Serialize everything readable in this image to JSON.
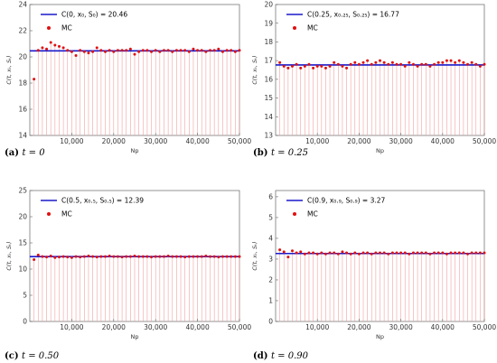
{
  "figure": {
    "panels": [
      {
        "caption": {
          "tag": "(a)",
          "math": "t = 0"
        },
        "legend": {
          "line_label": "C(0, x₀, S₀) = 20.46",
          "dot_label": "MC"
        },
        "chart_data": {
          "type": "scatter",
          "xlabel": "Np",
          "ylabel": "C(t, xₜ, Sₜ)",
          "xlim": [
            0,
            50000
          ],
          "ylim": [
            14,
            24
          ],
          "x_ticks": [
            10000,
            20000,
            30000,
            40000,
            50000
          ],
          "x_tick_labels": [
            "10,000",
            "20,000",
            "30,000",
            "40,000",
            "50,000"
          ],
          "y_ticks": [
            14,
            16,
            18,
            20,
            22,
            24
          ],
          "reference_value": 20.46,
          "series": [
            {
              "name": "C(0, x₀, S₀) = 20.46",
              "kind": "line"
            },
            {
              "name": "MC",
              "kind": "points",
              "x": [
                1000,
                2000,
                3000,
                4000,
                5000,
                6000,
                7000,
                8000,
                9000,
                10000,
                11000,
                12000,
                13000,
                14000,
                15000,
                16000,
                17000,
                18000,
                19000,
                20000,
                21000,
                22000,
                23000,
                24000,
                25000,
                26000,
                27000,
                28000,
                29000,
                30000,
                31000,
                32000,
                33000,
                34000,
                35000,
                36000,
                37000,
                38000,
                39000,
                40000,
                41000,
                42000,
                43000,
                44000,
                45000,
                46000,
                47000,
                48000,
                49000,
                50000
              ],
              "y": [
                18.3,
                20.5,
                20.7,
                20.6,
                21.1,
                20.9,
                20.8,
                20.7,
                20.5,
                20.4,
                20.1,
                20.5,
                20.4,
                20.3,
                20.4,
                20.7,
                20.5,
                20.4,
                20.5,
                20.4,
                20.5,
                20.5,
                20.5,
                20.6,
                20.2,
                20.4,
                20.5,
                20.5,
                20.4,
                20.5,
                20.4,
                20.5,
                20.5,
                20.4,
                20.5,
                20.5,
                20.5,
                20.4,
                20.6,
                20.5,
                20.5,
                20.4,
                20.5,
                20.5,
                20.6,
                20.4,
                20.5,
                20.5,
                20.4,
                20.5
              ]
            }
          ],
          "grid": false,
          "legend_position": "top-left"
        }
      },
      {
        "caption": {
          "tag": "(b)",
          "math": "t = 0.25"
        },
        "legend": {
          "line_label": "C(0.25, x₀.₂₅, S₀.₂₅) = 16.77",
          "dot_label": "MC"
        },
        "chart_data": {
          "type": "scatter",
          "xlabel": "Np",
          "ylabel": "C(t, xₜ, Sₜ)",
          "xlim": [
            0,
            50000
          ],
          "ylim": [
            13,
            20
          ],
          "x_ticks": [
            10000,
            20000,
            30000,
            40000,
            50000
          ],
          "x_tick_labels": [
            "10,000",
            "20,000",
            "30,000",
            "40,000",
            "50,000"
          ],
          "y_ticks": [
            13,
            14,
            15,
            16,
            17,
            18,
            19,
            20
          ],
          "reference_value": 16.77,
          "series": [
            {
              "name": "C(0.25, x₀.₂₅, S₀.₂₅) = 16.77",
              "kind": "line"
            },
            {
              "name": "MC",
              "kind": "points",
              "x": [
                1000,
                2000,
                3000,
                4000,
                5000,
                6000,
                7000,
                8000,
                9000,
                10000,
                11000,
                12000,
                13000,
                14000,
                15000,
                16000,
                17000,
                18000,
                19000,
                20000,
                21000,
                22000,
                23000,
                24000,
                25000,
                26000,
                27000,
                28000,
                29000,
                30000,
                31000,
                32000,
                33000,
                34000,
                35000,
                36000,
                37000,
                38000,
                39000,
                40000,
                41000,
                42000,
                43000,
                44000,
                45000,
                46000,
                47000,
                48000,
                49000,
                50000
              ],
              "y": [
                16.9,
                16.7,
                16.6,
                16.7,
                16.8,
                16.6,
                16.7,
                16.8,
                16.6,
                16.7,
                16.7,
                16.6,
                16.7,
                16.9,
                16.8,
                16.7,
                16.6,
                16.8,
                16.9,
                16.8,
                16.9,
                17.0,
                16.8,
                16.9,
                17.0,
                16.9,
                16.8,
                16.9,
                16.8,
                16.8,
                16.7,
                16.9,
                16.8,
                16.7,
                16.8,
                16.8,
                16.7,
                16.8,
                16.9,
                16.9,
                17.0,
                17.0,
                16.9,
                17.0,
                16.9,
                16.8,
                16.9,
                16.8,
                16.7,
                16.8
              ]
            }
          ],
          "grid": false,
          "legend_position": "top-left"
        }
      },
      {
        "caption": {
          "tag": "(c)",
          "math": "t = 0.50"
        },
        "legend": {
          "line_label": "C(0.5, x₀.₅, S₀.₅) = 12.39",
          "dot_label": "MC"
        },
        "chart_data": {
          "type": "scatter",
          "xlabel": "Np",
          "ylabel": "C(t, xₜ, Sₜ)",
          "xlim": [
            0,
            50000
          ],
          "ylim": [
            0,
            25
          ],
          "x_ticks": [
            10000,
            20000,
            30000,
            40000,
            50000
          ],
          "x_tick_labels": [
            "10,000",
            "20,000",
            "30,000",
            "40,000",
            "50,000"
          ],
          "y_ticks": [
            0,
            5,
            10,
            15,
            20,
            25
          ],
          "reference_value": 12.39,
          "series": [
            {
              "name": "C(0.5, x₀.₅, S₀.₅) = 12.39",
              "kind": "line"
            },
            {
              "name": "MC",
              "kind": "points",
              "x": [
                1000,
                2000,
                3000,
                4000,
                5000,
                6000,
                7000,
                8000,
                9000,
                10000,
                11000,
                12000,
                13000,
                14000,
                15000,
                16000,
                17000,
                18000,
                19000,
                20000,
                21000,
                22000,
                23000,
                24000,
                25000,
                26000,
                27000,
                28000,
                29000,
                30000,
                31000,
                32000,
                33000,
                34000,
                35000,
                36000,
                37000,
                38000,
                39000,
                40000,
                41000,
                42000,
                43000,
                44000,
                45000,
                46000,
                47000,
                48000,
                49000,
                50000
              ],
              "y": [
                11.8,
                12.7,
                12.4,
                12.3,
                12.5,
                12.2,
                12.3,
                12.4,
                12.3,
                12.2,
                12.4,
                12.3,
                12.4,
                12.5,
                12.4,
                12.3,
                12.4,
                12.4,
                12.5,
                12.4,
                12.4,
                12.3,
                12.4,
                12.4,
                12.5,
                12.4,
                12.4,
                12.4,
                12.3,
                12.4,
                12.4,
                12.4,
                12.5,
                12.4,
                12.4,
                12.4,
                12.3,
                12.4,
                12.4,
                12.4,
                12.4,
                12.5,
                12.4,
                12.4,
                12.3,
                12.4,
                12.4,
                12.4,
                12.4,
                12.4
              ]
            }
          ],
          "grid": false,
          "legend_position": "top-left"
        }
      },
      {
        "caption": {
          "tag": "(d)",
          "math": "t = 0.90"
        },
        "legend": {
          "line_label": "C(0.9, x₀.₉, S₀.₉) = 3.27",
          "dot_label": "MC"
        },
        "chart_data": {
          "type": "scatter",
          "xlabel": "Np",
          "ylabel": "C(t, xₜ, Sₜ)",
          "xlim": [
            0,
            50000
          ],
          "ylim": [
            0,
            6.3
          ],
          "x_ticks": [
            10000,
            20000,
            30000,
            40000,
            50000
          ],
          "x_tick_labels": [
            "10,000",
            "20,000",
            "30,000",
            "40,000",
            "50,000"
          ],
          "y_ticks": [
            0,
            1,
            2,
            3,
            4,
            5,
            6
          ],
          "reference_value": 3.27,
          "series": [
            {
              "name": "C(0.9, x₀.₉, S₀.₉) = 3.27",
              "kind": "line"
            },
            {
              "name": "MC",
              "kind": "points",
              "x": [
                1000,
                2000,
                3000,
                4000,
                5000,
                6000,
                7000,
                8000,
                9000,
                10000,
                11000,
                12000,
                13000,
                14000,
                15000,
                16000,
                17000,
                18000,
                19000,
                20000,
                21000,
                22000,
                23000,
                24000,
                25000,
                26000,
                27000,
                28000,
                29000,
                30000,
                31000,
                32000,
                33000,
                34000,
                35000,
                36000,
                37000,
                38000,
                39000,
                40000,
                41000,
                42000,
                43000,
                44000,
                45000,
                46000,
                47000,
                48000,
                49000,
                50000
              ],
              "y": [
                3.45,
                3.35,
                3.1,
                3.4,
                3.3,
                3.35,
                3.25,
                3.3,
                3.3,
                3.25,
                3.3,
                3.25,
                3.3,
                3.3,
                3.25,
                3.35,
                3.3,
                3.25,
                3.3,
                3.25,
                3.3,
                3.3,
                3.25,
                3.3,
                3.3,
                3.3,
                3.25,
                3.3,
                3.3,
                3.3,
                3.3,
                3.25,
                3.3,
                3.3,
                3.3,
                3.3,
                3.25,
                3.3,
                3.3,
                3.3,
                3.25,
                3.3,
                3.3,
                3.3,
                3.3,
                3.25,
                3.3,
                3.3,
                3.3,
                3.3
              ]
            }
          ],
          "grid": false,
          "legend_position": "top-left"
        }
      }
    ],
    "colors": {
      "reference_line": "#1a1acc",
      "mc_points": "#e01010",
      "drop_lines": "#f2a0a0",
      "frame": "#666666"
    }
  }
}
